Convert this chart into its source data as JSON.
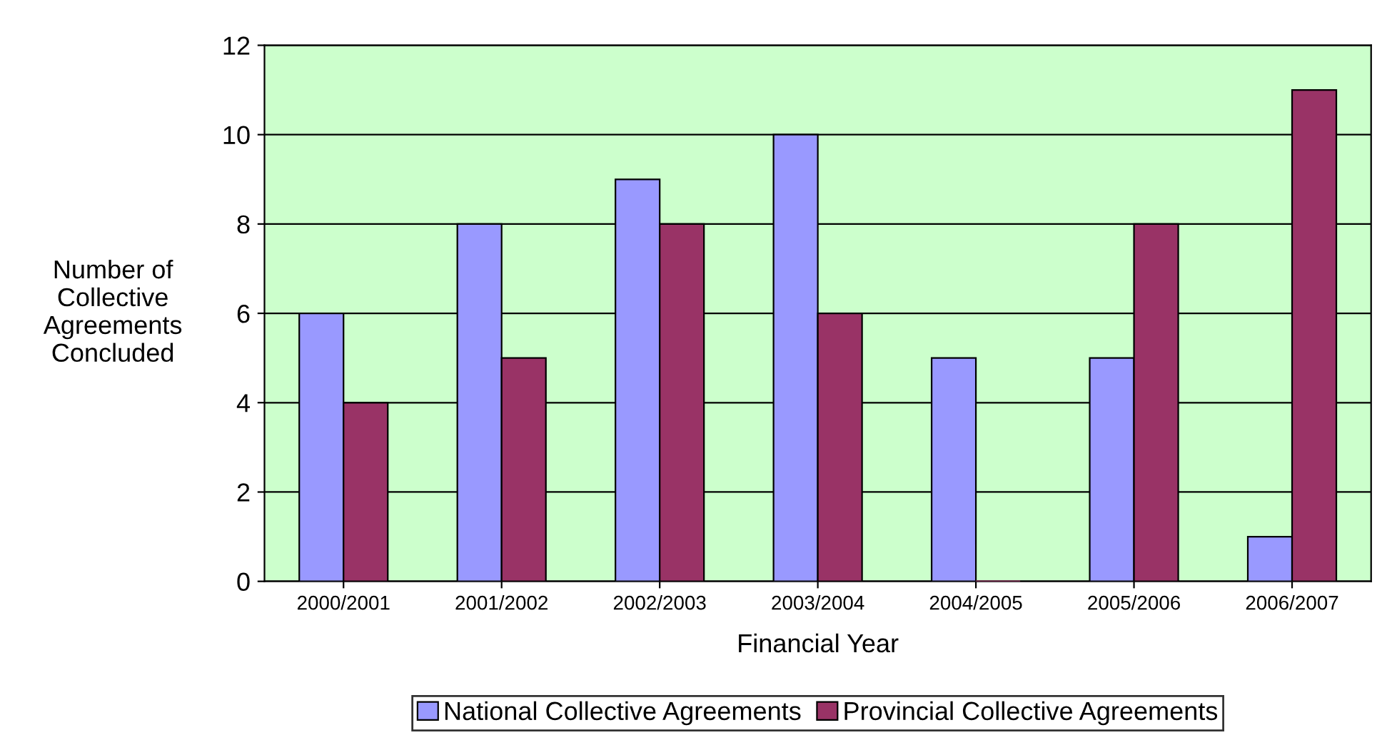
{
  "chart_data": {
    "type": "bar",
    "xlabel": "Financial Year",
    "ylabel": "Number of\nCollective\nAgreements\nConcluded",
    "categories": [
      "2000/2001",
      "2001/2002",
      "2002/2003",
      "2003/2004",
      "2004/2005",
      "2005/2006",
      "2006/2007"
    ],
    "series": [
      {
        "name": "National Collective Agreements",
        "color": "#9999ff",
        "values": [
          6,
          8,
          9,
          10,
          5,
          5,
          1
        ]
      },
      {
        "name": "Provincial Collective Agreements",
        "color": "#993366",
        "values": [
          4,
          5,
          8,
          6,
          0,
          8,
          11
        ]
      }
    ],
    "ylim": [
      0,
      12
    ],
    "yticks": [
      0,
      2,
      4,
      6,
      8,
      10,
      12
    ],
    "grid": "y",
    "legend": "bottom"
  }
}
